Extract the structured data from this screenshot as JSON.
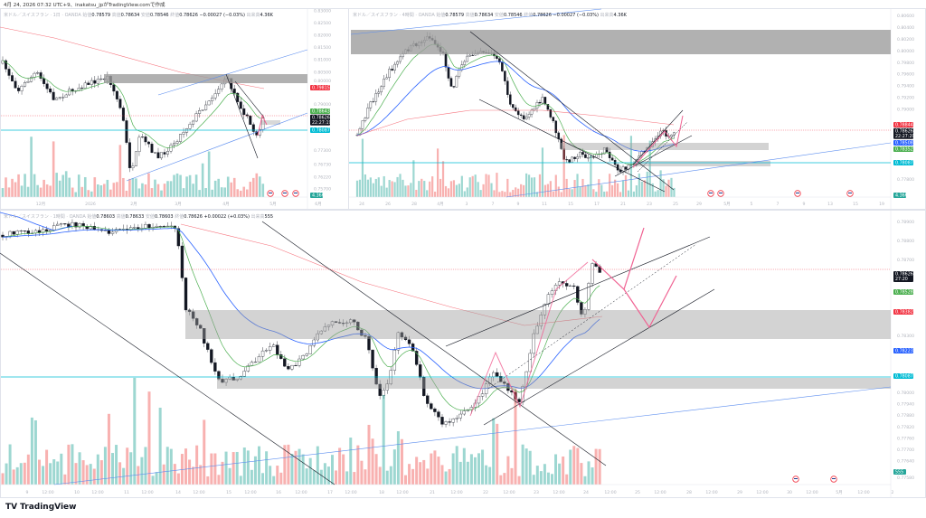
{
  "caption": "4月 24, 2026 07:32 UTC+9、inakatsu_jpがTradingView.comで作成",
  "brand": "TradingView",
  "colors": {
    "up": "#26a69a",
    "down": "#ef5350",
    "ma_fast": "#4caf50",
    "ma_mid": "#2962ff",
    "ma_slow": "#f23645",
    "level": "#00bcd4",
    "projection": "#f06292",
    "zone": "#9e9e9e"
  },
  "chart_data": [
    {
      "type": "candlestick",
      "pane": "daily",
      "legend": {
        "symbol": "米ドル／スイスフラン · 1日 · OANDA",
        "open_label": "始値",
        "open": "0.78579",
        "high_label": "高値",
        "high": "0.78634",
        "low_label": "安値",
        "low": "0.78546",
        "close_label": "終値",
        "close": "0.78626",
        "change": "−0.00027 (−0.03%)",
        "volume_label": "出来高",
        "volume": "4.36K"
      },
      "ylim": [
        0.757,
        0.83
      ],
      "y_ticks": [
        "0.83000",
        "0.82500",
        "0.82000",
        "0.81500",
        "0.81000",
        "0.80500",
        "0.80000",
        "0.79000",
        "0.77300",
        "0.76730",
        "0.76220",
        "0.75700"
      ],
      "x_ticks": [
        "12月",
        "2026",
        "2月",
        "3月",
        "4月",
        "5月",
        "6月"
      ],
      "price_tags": [
        {
          "value": "0.79815",
          "color": "#f23645"
        },
        {
          "value": "0.78643",
          "color": "#4caf50"
        },
        {
          "value": "0.78626",
          "sub": "22:27:19",
          "color": "#131722"
        },
        {
          "value": "0.78087",
          "color": "#00bcd4"
        },
        {
          "value": "4.36K",
          "color": "#26a69a",
          "kind": "volume"
        }
      ]
    },
    {
      "type": "candlestick",
      "pane": "4h",
      "legend": {
        "symbol": "米ドル／スイスフラン · 4時間 · OANDA",
        "open_label": "始値",
        "open": "0.78579",
        "high_label": "高値",
        "high": "0.78634",
        "low_label": "安値",
        "low": "0.78546",
        "close_label": "終値",
        "close": "0.78626",
        "change": "−0.00027 (−0.03%)",
        "volume_label": "出来高",
        "volume": "4.36K"
      },
      "ylim": [
        0.7775,
        0.8065
      ],
      "y_ticks": [
        "0.80600",
        "0.80400",
        "0.80200",
        "0.80000",
        "0.79800",
        "0.79600",
        "0.79400",
        "0.79200",
        "0.79000",
        "0.77800"
      ],
      "x_ticks": [
        "24",
        "26",
        "28",
        "4月",
        "3",
        "7",
        "9",
        "11",
        "15",
        "17",
        "21",
        "23",
        "25",
        "29",
        "5月",
        "5",
        "7",
        "9",
        "13",
        "15",
        "19"
      ],
      "price_tags": [
        {
          "value": "0.78844",
          "color": "#f23645"
        },
        {
          "value": "0.78626",
          "sub": "22:27:20",
          "color": "#131722"
        },
        {
          "value": "0.78508",
          "color": "#2962ff"
        },
        {
          "value": "0.78352",
          "color": "#4caf50"
        },
        {
          "value": "0.78087",
          "color": "#00bcd4"
        },
        {
          "value": "4.36K",
          "color": "#26a69a",
          "kind": "volume"
        }
      ]
    },
    {
      "type": "candlestick",
      "pane": "1h",
      "legend": {
        "symbol": "米ドル／スイスフラン · 1時間 · OANDA",
        "open_label": "始値",
        "open": "0.78603",
        "high_label": "高値",
        "high": "0.78633",
        "low_label": "安値",
        "low": "0.78603",
        "close_label": "終値",
        "close": "0.78626",
        "change": "+0.00022 (+0.03%)",
        "volume_label": "出来高",
        "volume": "555"
      },
      "ylim": [
        0.77516,
        0.78964
      ],
      "y_ticks": [
        "0.78900",
        "0.78800",
        "0.78700",
        "0.78300",
        "0.78000",
        "0.77940",
        "0.77880",
        "0.77820",
        "0.77760",
        "0.77700",
        "0.77640",
        "0.77580"
      ],
      "x_ticks": [
        "9",
        "12:00",
        "10",
        "12:00",
        "11",
        "12:00",
        "14",
        "12:00",
        "15",
        "12:00",
        "16",
        "12:00",
        "17",
        "12:00",
        "18",
        "12:00",
        "21",
        "12:00",
        "22",
        "12:00",
        "23",
        "12:00",
        "24",
        "12:00",
        "25",
        "12:00",
        "28",
        "12:00",
        "29",
        "12:00",
        "30",
        "12:00",
        "5月",
        "12:00",
        "2"
      ],
      "price_tags": [
        {
          "value": "0.78626",
          "sub": "27:20",
          "color": "#131722"
        },
        {
          "value": "0.78528",
          "color": "#4caf50"
        },
        {
          "value": "0.78382",
          "color": "#f23645"
        },
        {
          "value": "0.78223",
          "color": "#2962ff"
        },
        {
          "value": "0.78087",
          "color": "#00bcd4"
        },
        {
          "value": "555",
          "color": "#26a69a",
          "kind": "volume"
        }
      ]
    }
  ]
}
